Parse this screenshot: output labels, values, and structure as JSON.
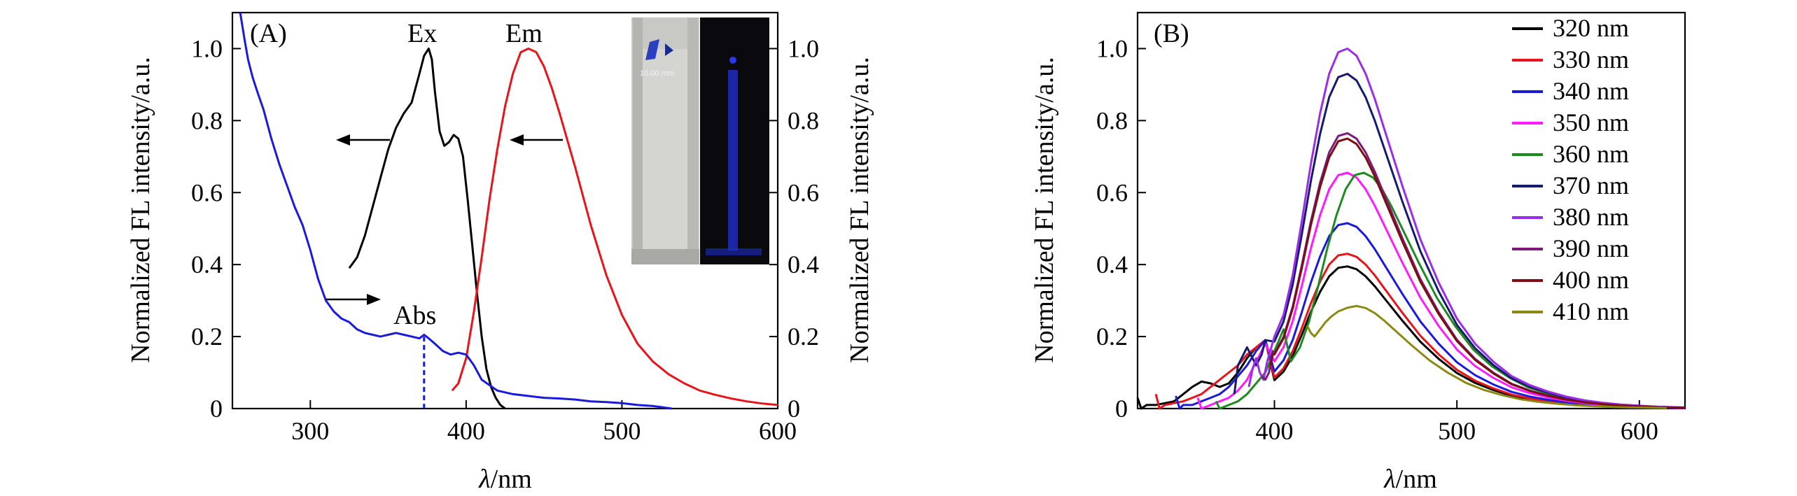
{
  "chart_data": [
    {
      "panel": "(A)",
      "type": "line",
      "xlabel_italic": "λ",
      "xlabel_unit": "/nm",
      "ylabel": "Normalized FL intensity/a.u.",
      "ylabel_right": "Normalized FL intensity/a.u.",
      "xlim": [
        250,
        600
      ],
      "ylim": [
        0,
        1.1
      ],
      "xticks": [
        300,
        400,
        500,
        600
      ],
      "yticks": [
        0,
        0.2,
        0.4,
        0.6,
        0.8,
        1.0
      ],
      "ytick_labels": [
        "0",
        "0.2",
        "0.4",
        "0.6",
        "0.8",
        "1.0"
      ],
      "grid": false,
      "series": [
        {
          "name": "Ex",
          "color": "#000000",
          "x": [
            325,
            330,
            335,
            340,
            345,
            350,
            355,
            360,
            365,
            370,
            373,
            376,
            378,
            380,
            383,
            386,
            389,
            392,
            395,
            398,
            401,
            404,
            407,
            410,
            413,
            416,
            419,
            422,
            425
          ],
          "y": [
            0.39,
            0.42,
            0.48,
            0.56,
            0.64,
            0.72,
            0.78,
            0.82,
            0.85,
            0.93,
            0.98,
            1.0,
            0.97,
            0.88,
            0.77,
            0.73,
            0.74,
            0.76,
            0.75,
            0.7,
            0.58,
            0.45,
            0.32,
            0.2,
            0.11,
            0.06,
            0.03,
            0.01,
            0.0
          ]
        },
        {
          "name": "Em",
          "color": "#e8141b",
          "x": [
            391,
            395,
            400,
            405,
            410,
            415,
            420,
            425,
            430,
            435,
            440,
            445,
            450,
            455,
            460,
            470,
            480,
            490,
            500,
            510,
            520,
            530,
            540,
            550,
            560,
            570,
            580,
            590,
            600
          ],
          "y": [
            0.05,
            0.07,
            0.14,
            0.27,
            0.42,
            0.58,
            0.72,
            0.84,
            0.93,
            0.99,
            1.0,
            0.99,
            0.95,
            0.89,
            0.82,
            0.67,
            0.51,
            0.37,
            0.26,
            0.18,
            0.13,
            0.095,
            0.07,
            0.05,
            0.038,
            0.028,
            0.02,
            0.014,
            0.01
          ]
        },
        {
          "name": "Abs",
          "color": "#1a1adb",
          "x": [
            255,
            258,
            260,
            263,
            266,
            270,
            275,
            280,
            285,
            290,
            295,
            300,
            305,
            310,
            315,
            320,
            325,
            330,
            335,
            340,
            345,
            350,
            355,
            360,
            365,
            370,
            373,
            376,
            380,
            385,
            390,
            395,
            400,
            405,
            410,
            420,
            430,
            440,
            450,
            460,
            470,
            480,
            490,
            500,
            510,
            520,
            532
          ],
          "y": [
            1.1,
            1.02,
            0.97,
            0.92,
            0.88,
            0.83,
            0.75,
            0.68,
            0.62,
            0.56,
            0.51,
            0.44,
            0.36,
            0.3,
            0.27,
            0.25,
            0.24,
            0.22,
            0.21,
            0.205,
            0.2,
            0.205,
            0.21,
            0.205,
            0.2,
            0.195,
            0.205,
            0.195,
            0.18,
            0.16,
            0.15,
            0.155,
            0.15,
            0.12,
            0.08,
            0.05,
            0.04,
            0.035,
            0.03,
            0.028,
            0.025,
            0.02,
            0.018,
            0.015,
            0.01,
            0.007,
            0.0
          ]
        }
      ],
      "annotations": {
        "ex_label": "Ex",
        "em_label": "Em",
        "abs_label": "Abs",
        "abs_peak_marker_x": 373
      }
    },
    {
      "panel": "(B)",
      "type": "line",
      "xlabel_italic": "λ",
      "xlabel_unit": "/nm",
      "ylabel": "Normalized FL intensity/a.u.",
      "xlim": [
        325,
        625
      ],
      "ylim": [
        0,
        1.1
      ],
      "xticks": [
        400,
        500,
        600
      ],
      "yticks": [
        0,
        0.2,
        0.4,
        0.6,
        0.8,
        1.0
      ],
      "ytick_labels": [
        "0",
        "0.2",
        "0.4",
        "0.6",
        "0.8",
        "1.0"
      ],
      "grid": false,
      "legend_position": "top-right",
      "x": [
        400,
        405,
        410,
        415,
        420,
        425,
        430,
        435,
        440,
        445,
        450,
        455,
        460,
        470,
        480,
        490,
        500,
        510,
        520,
        530,
        540,
        550,
        560,
        570,
        580,
        590,
        600,
        610,
        625
      ],
      "shape": [
        0.2,
        0.26,
        0.37,
        0.52,
        0.68,
        0.82,
        0.93,
        0.99,
        1.0,
        0.98,
        0.93,
        0.86,
        0.78,
        0.62,
        0.47,
        0.35,
        0.25,
        0.18,
        0.13,
        0.09,
        0.065,
        0.047,
        0.033,
        0.023,
        0.016,
        0.011,
        0.008,
        0.005,
        0.003
      ],
      "series": [
        {
          "name": "320 nm",
          "color": "#000000",
          "peak": 0.395,
          "shift": 0,
          "pre_x": [
            325,
            327,
            330,
            335,
            340,
            345,
            350,
            355,
            360,
            365,
            370,
            375,
            380,
            385,
            390,
            395
          ],
          "pre_y": [
            0.03,
            0.0,
            0.01,
            0.01,
            0.015,
            0.02,
            0.04,
            0.06,
            0.075,
            0.07,
            0.06,
            0.07,
            0.1,
            0.14,
            0.17,
            0.19
          ]
        },
        {
          "name": "330 nm",
          "color": "#e8141b",
          "peak": 0.43,
          "shift": 0,
          "pre_x": [
            335,
            337,
            340,
            345,
            350,
            355,
            360,
            365,
            370,
            375,
            380,
            385,
            390,
            395
          ],
          "pre_y": [
            0.04,
            0.0,
            0.01,
            0.015,
            0.02,
            0.03,
            0.04,
            0.06,
            0.08,
            0.1,
            0.12,
            0.15,
            0.17,
            0.19
          ]
        },
        {
          "name": "340 nm",
          "color": "#1a1adb",
          "peak": 0.515,
          "shift": 0,
          "pre_x": [
            346,
            348,
            350,
            355,
            360,
            365,
            370,
            375,
            380,
            385,
            390,
            395
          ],
          "pre_y": [
            0.035,
            0.0,
            0.01,
            0.01,
            0.02,
            0.03,
            0.04,
            0.06,
            0.09,
            0.12,
            0.16,
            0.19
          ]
        },
        {
          "name": "350 nm",
          "color": "#ff1aff",
          "peak": 0.655,
          "shift": 0,
          "pre_x": [
            358,
            360,
            365,
            370,
            375,
            380,
            385,
            390,
            395
          ],
          "pre_y": [
            0.03,
            0.0,
            0.01,
            0.02,
            0.03,
            0.05,
            0.08,
            0.13,
            0.18
          ]
        },
        {
          "name": "360 nm",
          "color": "#1f8a1f",
          "peak": 0.655,
          "shift": 9,
          "pre_x": [
            368,
            370,
            375,
            380,
            385,
            390,
            395,
            400,
            405
          ],
          "pre_y": [
            0.02,
            0.0,
            0.01,
            0.02,
            0.04,
            0.07,
            0.1,
            0.16,
            0.22
          ]
        },
        {
          "name": "370 nm",
          "color": "#161a6e",
          "peak": 0.93,
          "shift": 0,
          "pre_x": [
            378,
            380,
            385,
            388,
            390,
            393,
            395
          ],
          "pre_y": [
            0.04,
            0.12,
            0.17,
            0.14,
            0.12,
            0.15,
            0.19
          ]
        },
        {
          "name": "380 nm",
          "color": "#9a2ee8",
          "peak": 1.0,
          "shift": 0,
          "pre_x": [
            386,
            388,
            390,
            392,
            394,
            396
          ],
          "pre_y": [
            0.06,
            0.11,
            0.14,
            0.1,
            0.08,
            0.13
          ]
        },
        {
          "name": "390 nm",
          "color": "#7a1a7a",
          "peak": 0.765,
          "shift": 0,
          "pre_x": [
            393,
            395,
            397,
            399
          ],
          "pre_y": [
            0.09,
            0.08,
            0.1,
            0.16
          ]
        },
        {
          "name": "400 nm",
          "color": "#7a0f0f",
          "peak": 0.75,
          "shift": 0,
          "pre_x": [
            398,
            399
          ],
          "pre_y": [
            0.12,
            0.15
          ]
        },
        {
          "name": "410 nm",
          "color": "#8a8a10",
          "peak": 0.285,
          "shift": 5,
          "pre_x": [
            418,
            420,
            422,
            425,
            428,
            431,
            435,
            440
          ],
          "pre_y": [
            0.23,
            0.21,
            0.2,
            0.22,
            0.24,
            0.255,
            0.27,
            0.28
          ]
        }
      ]
    }
  ],
  "inset": {
    "scale_text": "10.00 mm",
    "glass_color": "#c8c8c4",
    "dark_color": "#0a0a0e",
    "glow_color": "#2030d8"
  }
}
